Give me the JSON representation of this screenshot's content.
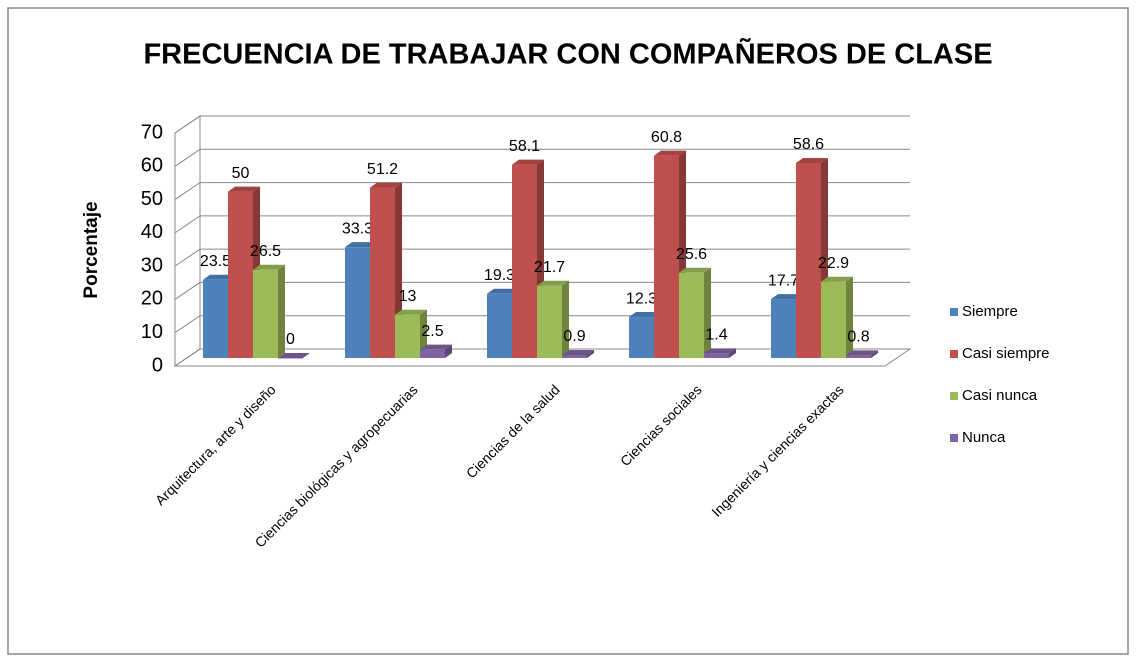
{
  "chart_data": {
    "type": "bar3d",
    "title": "FRECUENCIA DE TRABAJAR CON COMPAÑEROS DE CLASE",
    "y_label": "Porcentaje",
    "categories": [
      "Arquitectura, arte y diseño",
      "Ciencias biológicas y agropecuarias",
      "Ciencias de la salud",
      "Ciencias sociales",
      "Ingeniería y ciencias exactas"
    ],
    "series": [
      {
        "name": "Siempre",
        "color": "#4f81bd",
        "values": [
          23.5,
          33.3,
          19.3,
          12.3,
          17.7
        ]
      },
      {
        "name": "Casi siempre",
        "color": "#c0504d",
        "values": [
          50,
          51.2,
          58.1,
          60.8,
          58.6
        ]
      },
      {
        "name": "Casi nunca",
        "color": "#9bbb59",
        "values": [
          26.5,
          13,
          21.7,
          25.6,
          22.9
        ]
      },
      {
        "name": "Nunca",
        "color": "#8064a2",
        "values": [
          0,
          2.5,
          0.9,
          1.4,
          0.8
        ]
      }
    ],
    "ylim": [
      0,
      70
    ],
    "yticks": [
      0,
      10,
      20,
      30,
      40,
      50,
      60,
      70
    ],
    "grid": true,
    "legend": "right"
  }
}
